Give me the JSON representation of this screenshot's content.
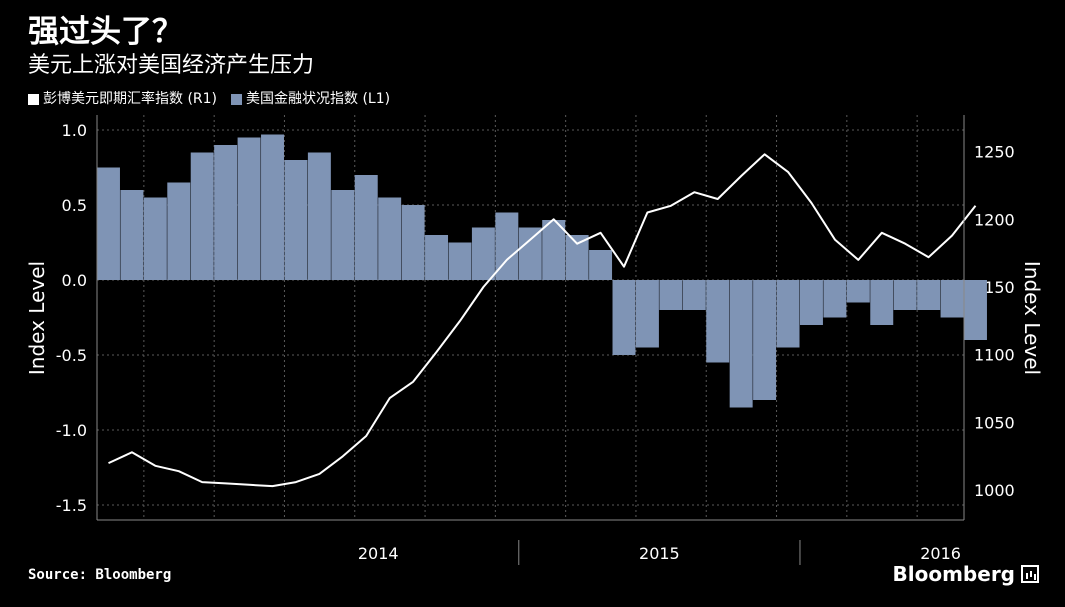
{
  "title": "强过头了？",
  "subtitle": "美元上涨对美国经济产生压力",
  "legend": {
    "series1_label": "彭博美元即期汇率指数 (R1)",
    "series2_label": "美国金融状况指数 (L1)"
  },
  "source": "Source: Bloomberg",
  "brand": "Bloomberg",
  "colors": {
    "background": "#000000",
    "line": "#ffffff",
    "bars": "#7f94b5",
    "grid": "#5a5a5a",
    "text": "#ffffff"
  },
  "chart_data": {
    "type": "bar+line",
    "x_labels": [
      "2014",
      "2015",
      "2016"
    ],
    "x_range": [
      "2013-07",
      "2016-08"
    ],
    "ylabel_left": "Index Level",
    "ylabel_right": "Index Level",
    "ylim_left": [
      -1.6,
      1.1
    ],
    "yticks_left": [
      "1.0",
      "0.5",
      "0.0",
      "-0.5",
      "-1.0",
      "-1.5"
    ],
    "ytick_values_left": [
      1.0,
      0.5,
      0.0,
      -0.5,
      -1.0,
      -1.5
    ],
    "ylim_right": [
      978,
      1277
    ],
    "yticks_right": [
      "1250",
      "1200",
      "1150",
      "1100",
      "1050",
      "1000"
    ],
    "ytick_values_right": [
      1250,
      1200,
      1150,
      1100,
      1050,
      1000
    ],
    "grid": true,
    "series": [
      {
        "name": "美国金融状况指数 (L1)",
        "axis": "left",
        "type": "bar",
        "x": [
          "2013-07",
          "2013-08",
          "2013-09",
          "2013-10",
          "2013-11",
          "2013-12",
          "2014-01",
          "2014-02",
          "2014-03",
          "2014-04",
          "2014-05",
          "2014-06",
          "2014-07",
          "2014-08",
          "2014-09",
          "2014-10",
          "2014-11",
          "2014-12",
          "2015-01",
          "2015-02",
          "2015-03",
          "2015-04",
          "2015-05",
          "2015-06",
          "2015-07",
          "2015-08",
          "2015-09",
          "2015-10",
          "2015-11",
          "2015-12",
          "2016-01",
          "2016-02",
          "2016-03",
          "2016-04",
          "2016-05",
          "2016-06",
          "2016-07",
          "2016-08"
        ],
        "values": [
          0.75,
          0.6,
          0.55,
          0.65,
          0.85,
          0.9,
          0.95,
          0.97,
          0.8,
          0.85,
          0.6,
          0.7,
          0.55,
          0.5,
          0.3,
          0.25,
          0.35,
          0.45,
          0.35,
          0.4,
          0.3,
          0.2,
          -0.5,
          -0.45,
          -0.2,
          -0.2,
          -0.55,
          -0.85,
          -0.8,
          -0.45,
          -0.3,
          -0.25,
          -0.15,
          -0.3,
          -0.2,
          -0.2,
          -0.25,
          -0.4
        ]
      },
      {
        "name": "彭博美元即期汇率指数 (R1)",
        "axis": "right",
        "type": "line",
        "x": [
          "2013-07",
          "2013-08",
          "2013-09",
          "2013-10",
          "2013-11",
          "2013-12",
          "2014-01",
          "2014-02",
          "2014-03",
          "2014-04",
          "2014-05",
          "2014-06",
          "2014-07",
          "2014-08",
          "2014-09",
          "2014-10",
          "2014-11",
          "2014-12",
          "2015-01",
          "2015-02",
          "2015-03",
          "2015-04",
          "2015-05",
          "2015-06",
          "2015-07",
          "2015-08",
          "2015-09",
          "2015-10",
          "2015-11",
          "2015-12",
          "2016-01",
          "2016-02",
          "2016-03",
          "2016-04",
          "2016-05",
          "2016-06",
          "2016-07",
          "2016-08"
        ],
        "values": [
          1020,
          1028,
          1018,
          1014,
          1006,
          1005,
          1004,
          1003,
          1006,
          1012,
          1025,
          1040,
          1068,
          1080,
          1102,
          1125,
          1150,
          1170,
          1185,
          1200,
          1182,
          1190,
          1165,
          1205,
          1210,
          1220,
          1215,
          1232,
          1248,
          1235,
          1212,
          1185,
          1170,
          1190,
          1182,
          1172,
          1188,
          1210
        ]
      }
    ]
  }
}
